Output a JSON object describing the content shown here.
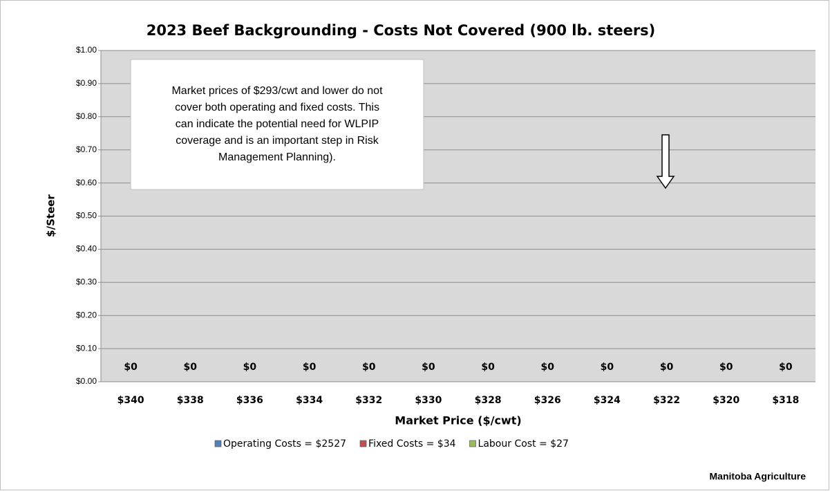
{
  "chart_data": {
    "type": "bar",
    "stacked": true,
    "title": "2023 Beef Backgrounding - Costs Not Covered (900 lb. steers)",
    "x_label": "Market Price ($/cwt)",
    "y_label": "$/Steer",
    "categories": [
      "$340",
      "$338",
      "$336",
      "$334",
      "$332",
      "$330",
      "$328",
      "$326",
      "$324",
      "$322",
      "$320",
      "$318"
    ],
    "series": [
      {
        "name": "Operating Costs = $2527",
        "color": "#4f81bd",
        "values": [
          0,
          0,
          0,
          0,
          0,
          0,
          0,
          0,
          0,
          0,
          0,
          0
        ],
        "value_labels": [
          "$0",
          "$0",
          "$0",
          "$0",
          "$0",
          "$0",
          "$0",
          "$0",
          "$0",
          "$0",
          "$0",
          "$0"
        ]
      },
      {
        "name": "Fixed Costs = $34",
        "color": "#c0504d",
        "values": [
          0,
          0,
          0,
          0,
          0,
          0,
          0,
          0,
          0,
          0,
          0,
          0
        ]
      },
      {
        "name": "Labour Cost = $27",
        "color": "#9bbb59",
        "values": [
          0,
          0,
          0,
          0,
          0,
          0,
          0,
          0,
          0,
          0,
          0,
          0
        ]
      }
    ],
    "ylim": [
      0,
      1
    ],
    "yticks": [
      {
        "value": 0,
        "label": "$0.00"
      },
      {
        "value": 0.1,
        "label": "$0.10"
      },
      {
        "value": 0.2,
        "label": "$0.20"
      },
      {
        "value": 0.3,
        "label": "$0.30"
      },
      {
        "value": 0.4,
        "label": "$0.40"
      },
      {
        "value": 0.5,
        "label": "$0.50"
      },
      {
        "value": 0.6,
        "label": "$0.60"
      },
      {
        "value": 0.7,
        "label": "$0.70"
      },
      {
        "value": 0.8,
        "label": "$0.80"
      },
      {
        "value": 0.9,
        "label": "$0.90"
      },
      {
        "value": 1,
        "label": "$1.00"
      }
    ],
    "grid": true,
    "legend": "bottom",
    "annotation": [
      "Market prices of $293/cwt and lower do not",
      "cover both operating and fixed costs.  This",
      "can indicate the potential need for WLPIP",
      "coverage and is an important step in Risk",
      "Management Planning)."
    ],
    "footer": "Manitoba Agriculture"
  }
}
